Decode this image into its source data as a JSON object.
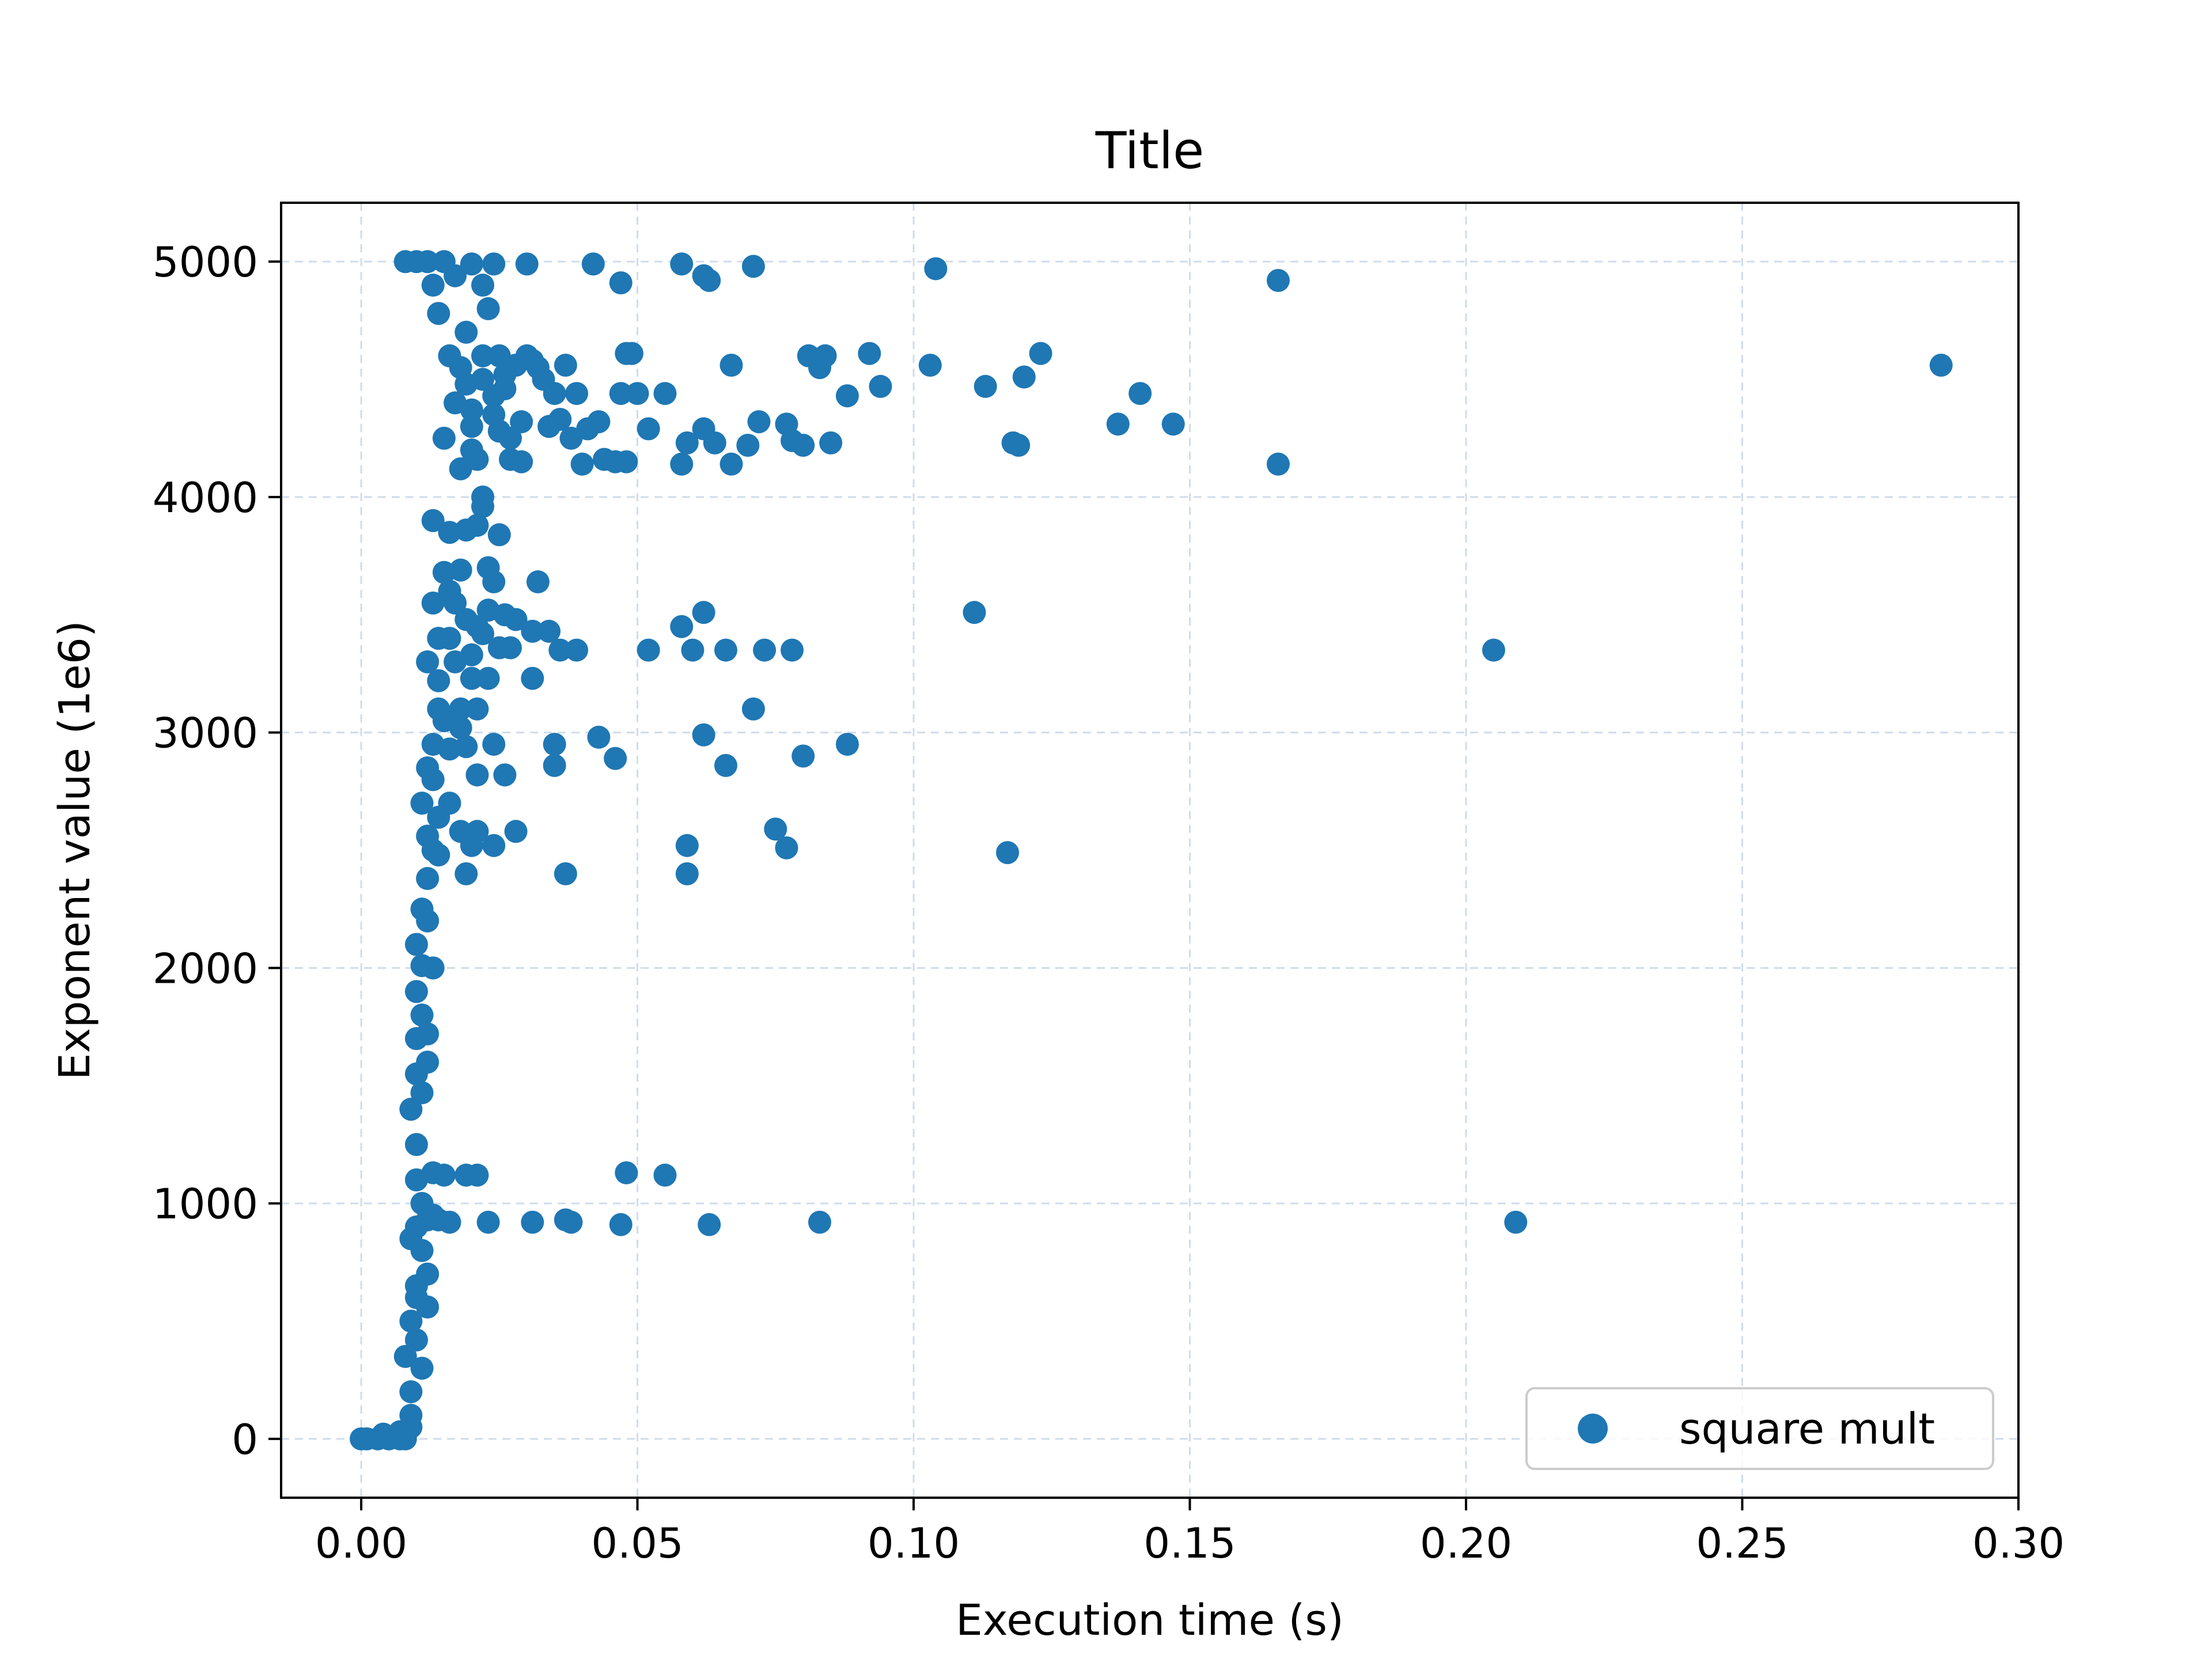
{
  "chart_data": {
    "type": "scatter",
    "title": "Title",
    "xlabel": "Execution time (s)",
    "ylabel": "Exponent value (1e6)",
    "xlim": [
      -0.0145,
      0.3
    ],
    "ylim": [
      -250,
      5250
    ],
    "xticks": [
      0.0,
      0.05,
      0.1,
      0.15,
      0.2,
      0.25,
      0.3
    ],
    "xtick_labels": [
      "0.00",
      "0.05",
      "0.10",
      "0.15",
      "0.20",
      "0.25",
      "0.30"
    ],
    "yticks": [
      0,
      1000,
      2000,
      3000,
      4000,
      5000
    ],
    "ytick_labels": [
      "0",
      "1000",
      "2000",
      "3000",
      "4000",
      "5000"
    ],
    "grid": true,
    "legend": {
      "placement": "lower-right"
    },
    "series": [
      {
        "name": "square mult",
        "color": "#1f77b4",
        "points": [
          [
            0.0,
            0
          ],
          [
            0.001,
            0
          ],
          [
            0.003,
            0
          ],
          [
            0.005,
            0
          ],
          [
            0.007,
            0
          ],
          [
            0.008,
            0
          ],
          [
            0.286,
            4560
          ],
          [
            0.166,
            4920
          ],
          [
            0.166,
            4140
          ],
          [
            0.104,
            4970
          ],
          [
            0.209,
            920
          ],
          [
            0.205,
            3350
          ],
          [
            0.117,
            2490
          ],
          [
            0.111,
            3510
          ],
          [
            0.123,
            4610
          ],
          [
            0.12,
            4510
          ],
          [
            0.141,
            4440
          ],
          [
            0.137,
            4310
          ],
          [
            0.147,
            4310
          ],
          [
            0.113,
            4470
          ],
          [
            0.118,
            4230
          ],
          [
            0.119,
            4220
          ],
          [
            0.103,
            4560
          ],
          [
            0.092,
            4610
          ],
          [
            0.094,
            4470
          ],
          [
            0.088,
            4430
          ],
          [
            0.085,
            4230
          ],
          [
            0.084,
            4600
          ],
          [
            0.081,
            4600
          ],
          [
            0.083,
            4550
          ],
          [
            0.08,
            4220
          ],
          [
            0.077,
            4310
          ],
          [
            0.078,
            4240
          ],
          [
            0.072,
            4320
          ],
          [
            0.07,
            4220
          ],
          [
            0.067,
            4140
          ],
          [
            0.067,
            4560
          ],
          [
            0.062,
            4290
          ],
          [
            0.064,
            4230
          ],
          [
            0.058,
            4140
          ],
          [
            0.059,
            4230
          ],
          [
            0.071,
            4980
          ],
          [
            0.058,
            4990
          ],
          [
            0.063,
            4920
          ],
          [
            0.062,
            4940
          ],
          [
            0.047,
            4910
          ],
          [
            0.042,
            4990
          ],
          [
            0.03,
            4990
          ],
          [
            0.049,
            4610
          ],
          [
            0.048,
            4610
          ],
          [
            0.05,
            4440
          ],
          [
            0.052,
            4290
          ],
          [
            0.055,
            4440
          ],
          [
            0.047,
            4440
          ],
          [
            0.044,
            4160
          ],
          [
            0.04,
            4140
          ],
          [
            0.046,
            4150
          ],
          [
            0.048,
            4150
          ],
          [
            0.038,
            4250
          ],
          [
            0.034,
            4300
          ],
          [
            0.036,
            4330
          ],
          [
            0.041,
            4290
          ],
          [
            0.043,
            4320
          ],
          [
            0.039,
            4440
          ],
          [
            0.035,
            4440
          ],
          [
            0.033,
            4500
          ],
          [
            0.031,
            4580
          ],
          [
            0.028,
            4560
          ],
          [
            0.037,
            4560
          ],
          [
            0.03,
            4600
          ],
          [
            0.025,
            4600
          ],
          [
            0.022,
            4600
          ],
          [
            0.026,
            4460
          ],
          [
            0.024,
            4350
          ],
          [
            0.027,
            4250
          ],
          [
            0.029,
            4150
          ],
          [
            0.021,
            4160
          ],
          [
            0.02,
            4370
          ],
          [
            0.019,
            4480
          ],
          [
            0.023,
            4800
          ],
          [
            0.022,
            4900
          ],
          [
            0.024,
            4990
          ],
          [
            0.017,
            4940
          ],
          [
            0.02,
            4990
          ],
          [
            0.052,
            3350
          ],
          [
            0.06,
            3350
          ],
          [
            0.062,
            3510
          ],
          [
            0.058,
            3450
          ],
          [
            0.066,
            3350
          ],
          [
            0.073,
            3350
          ],
          [
            0.078,
            3350
          ],
          [
            0.039,
            3350
          ],
          [
            0.036,
            3350
          ],
          [
            0.034,
            3430
          ],
          [
            0.031,
            3430
          ],
          [
            0.028,
            3480
          ],
          [
            0.024,
            3640
          ],
          [
            0.023,
            3700
          ],
          [
            0.025,
            3840
          ],
          [
            0.022,
            3960
          ],
          [
            0.022,
            4000
          ],
          [
            0.032,
            3640
          ],
          [
            0.031,
            3230
          ],
          [
            0.023,
            3230
          ],
          [
            0.02,
            3230
          ],
          [
            0.021,
            3100
          ],
          [
            0.018,
            3100
          ],
          [
            0.071,
            3100
          ],
          [
            0.043,
            2980
          ],
          [
            0.046,
            2890
          ],
          [
            0.062,
            2990
          ],
          [
            0.066,
            2860
          ],
          [
            0.08,
            2900
          ],
          [
            0.088,
            2950
          ],
          [
            0.035,
            2950
          ],
          [
            0.035,
            2860
          ],
          [
            0.026,
            2820
          ],
          [
            0.024,
            2950
          ],
          [
            0.021,
            2820
          ],
          [
            0.019,
            2940
          ],
          [
            0.016,
            2930
          ],
          [
            0.028,
            2580
          ],
          [
            0.024,
            2520
          ],
          [
            0.02,
            2520
          ],
          [
            0.018,
            2580
          ],
          [
            0.021,
            2580
          ],
          [
            0.059,
            2520
          ],
          [
            0.059,
            2400
          ],
          [
            0.037,
            2400
          ],
          [
            0.019,
            2400
          ],
          [
            0.075,
            2590
          ],
          [
            0.077,
            2510
          ],
          [
            0.048,
            1130
          ],
          [
            0.055,
            1120
          ],
          [
            0.047,
            910
          ],
          [
            0.063,
            910
          ],
          [
            0.083,
            920
          ],
          [
            0.038,
            920
          ],
          [
            0.037,
            930
          ],
          [
            0.031,
            920
          ],
          [
            0.023,
            920
          ],
          [
            0.016,
            920
          ],
          [
            0.021,
            1120
          ],
          [
            0.019,
            1120
          ],
          [
            0.015,
            1120
          ],
          [
            0.012,
            930
          ],
          [
            0.014,
            930
          ],
          [
            0.013,
            1130
          ],
          [
            0.01,
            900
          ],
          [
            0.012,
            2200
          ],
          [
            0.011,
            2010
          ],
          [
            0.01,
            1900
          ],
          [
            0.012,
            1720
          ],
          [
            0.01,
            1550
          ],
          [
            0.011,
            1470
          ],
          [
            0.01,
            1250
          ],
          [
            0.011,
            800
          ],
          [
            0.01,
            650
          ],
          [
            0.012,
            560
          ],
          [
            0.01,
            420
          ],
          [
            0.009,
            200
          ],
          [
            0.012,
            2560
          ],
          [
            0.014,
            2640
          ],
          [
            0.013,
            2800
          ],
          [
            0.015,
            3050
          ],
          [
            0.014,
            3220
          ],
          [
            0.016,
            3400
          ],
          [
            0.017,
            3550
          ],
          [
            0.015,
            3680
          ],
          [
            0.016,
            3850
          ],
          [
            0.013,
            3900
          ],
          [
            0.018,
            4120
          ],
          [
            0.015,
            4250
          ],
          [
            0.017,
            4400
          ],
          [
            0.016,
            4600
          ],
          [
            0.014,
            4780
          ],
          [
            0.013,
            4900
          ],
          [
            0.015,
            5000
          ],
          [
            0.012,
            5000
          ],
          [
            0.01,
            5000
          ],
          [
            0.008,
            5000
          ],
          [
            0.019,
            4700
          ],
          [
            0.018,
            4550
          ],
          [
            0.02,
            4200
          ],
          [
            0.021,
            3450
          ],
          [
            0.019,
            3480
          ],
          [
            0.017,
            3300
          ],
          [
            0.018,
            3020
          ],
          [
            0.016,
            2700
          ],
          [
            0.014,
            2480
          ],
          [
            0.013,
            2000
          ],
          [
            0.012,
            1600
          ],
          [
            0.011,
            1000
          ],
          [
            0.013,
            950
          ],
          [
            0.012,
            700
          ],
          [
            0.009,
            100
          ],
          [
            0.011,
            300
          ],
          [
            0.027,
            4160
          ],
          [
            0.029,
            4320
          ],
          [
            0.032,
            4550
          ],
          [
            0.025,
            4280
          ],
          [
            0.026,
            4520
          ],
          [
            0.024,
            4430
          ],
          [
            0.022,
            4500
          ],
          [
            0.02,
            4300
          ],
          [
            0.027,
            3360
          ],
          [
            0.025,
            3360
          ],
          [
            0.026,
            3500
          ],
          [
            0.022,
            3420
          ],
          [
            0.02,
            3330
          ],
          [
            0.023,
            3520
          ],
          [
            0.021,
            3880
          ],
          [
            0.019,
            3860
          ],
          [
            0.018,
            3690
          ],
          [
            0.016,
            3600
          ],
          [
            0.014,
            3400
          ],
          [
            0.013,
            3550
          ],
          [
            0.012,
            3300
          ],
          [
            0.014,
            3100
          ],
          [
            0.013,
            2950
          ],
          [
            0.012,
            2850
          ],
          [
            0.011,
            2700
          ],
          [
            0.013,
            2500
          ],
          [
            0.012,
            2380
          ],
          [
            0.011,
            2250
          ],
          [
            0.01,
            2100
          ],
          [
            0.011,
            1800
          ],
          [
            0.01,
            1700
          ],
          [
            0.009,
            1400
          ],
          [
            0.01,
            1100
          ],
          [
            0.009,
            850
          ],
          [
            0.01,
            600
          ],
          [
            0.009,
            500
          ],
          [
            0.008,
            350
          ],
          [
            0.009,
            50
          ],
          [
            0.007,
            30
          ],
          [
            0.006,
            10
          ],
          [
            0.004,
            20
          ]
        ]
      }
    ]
  }
}
